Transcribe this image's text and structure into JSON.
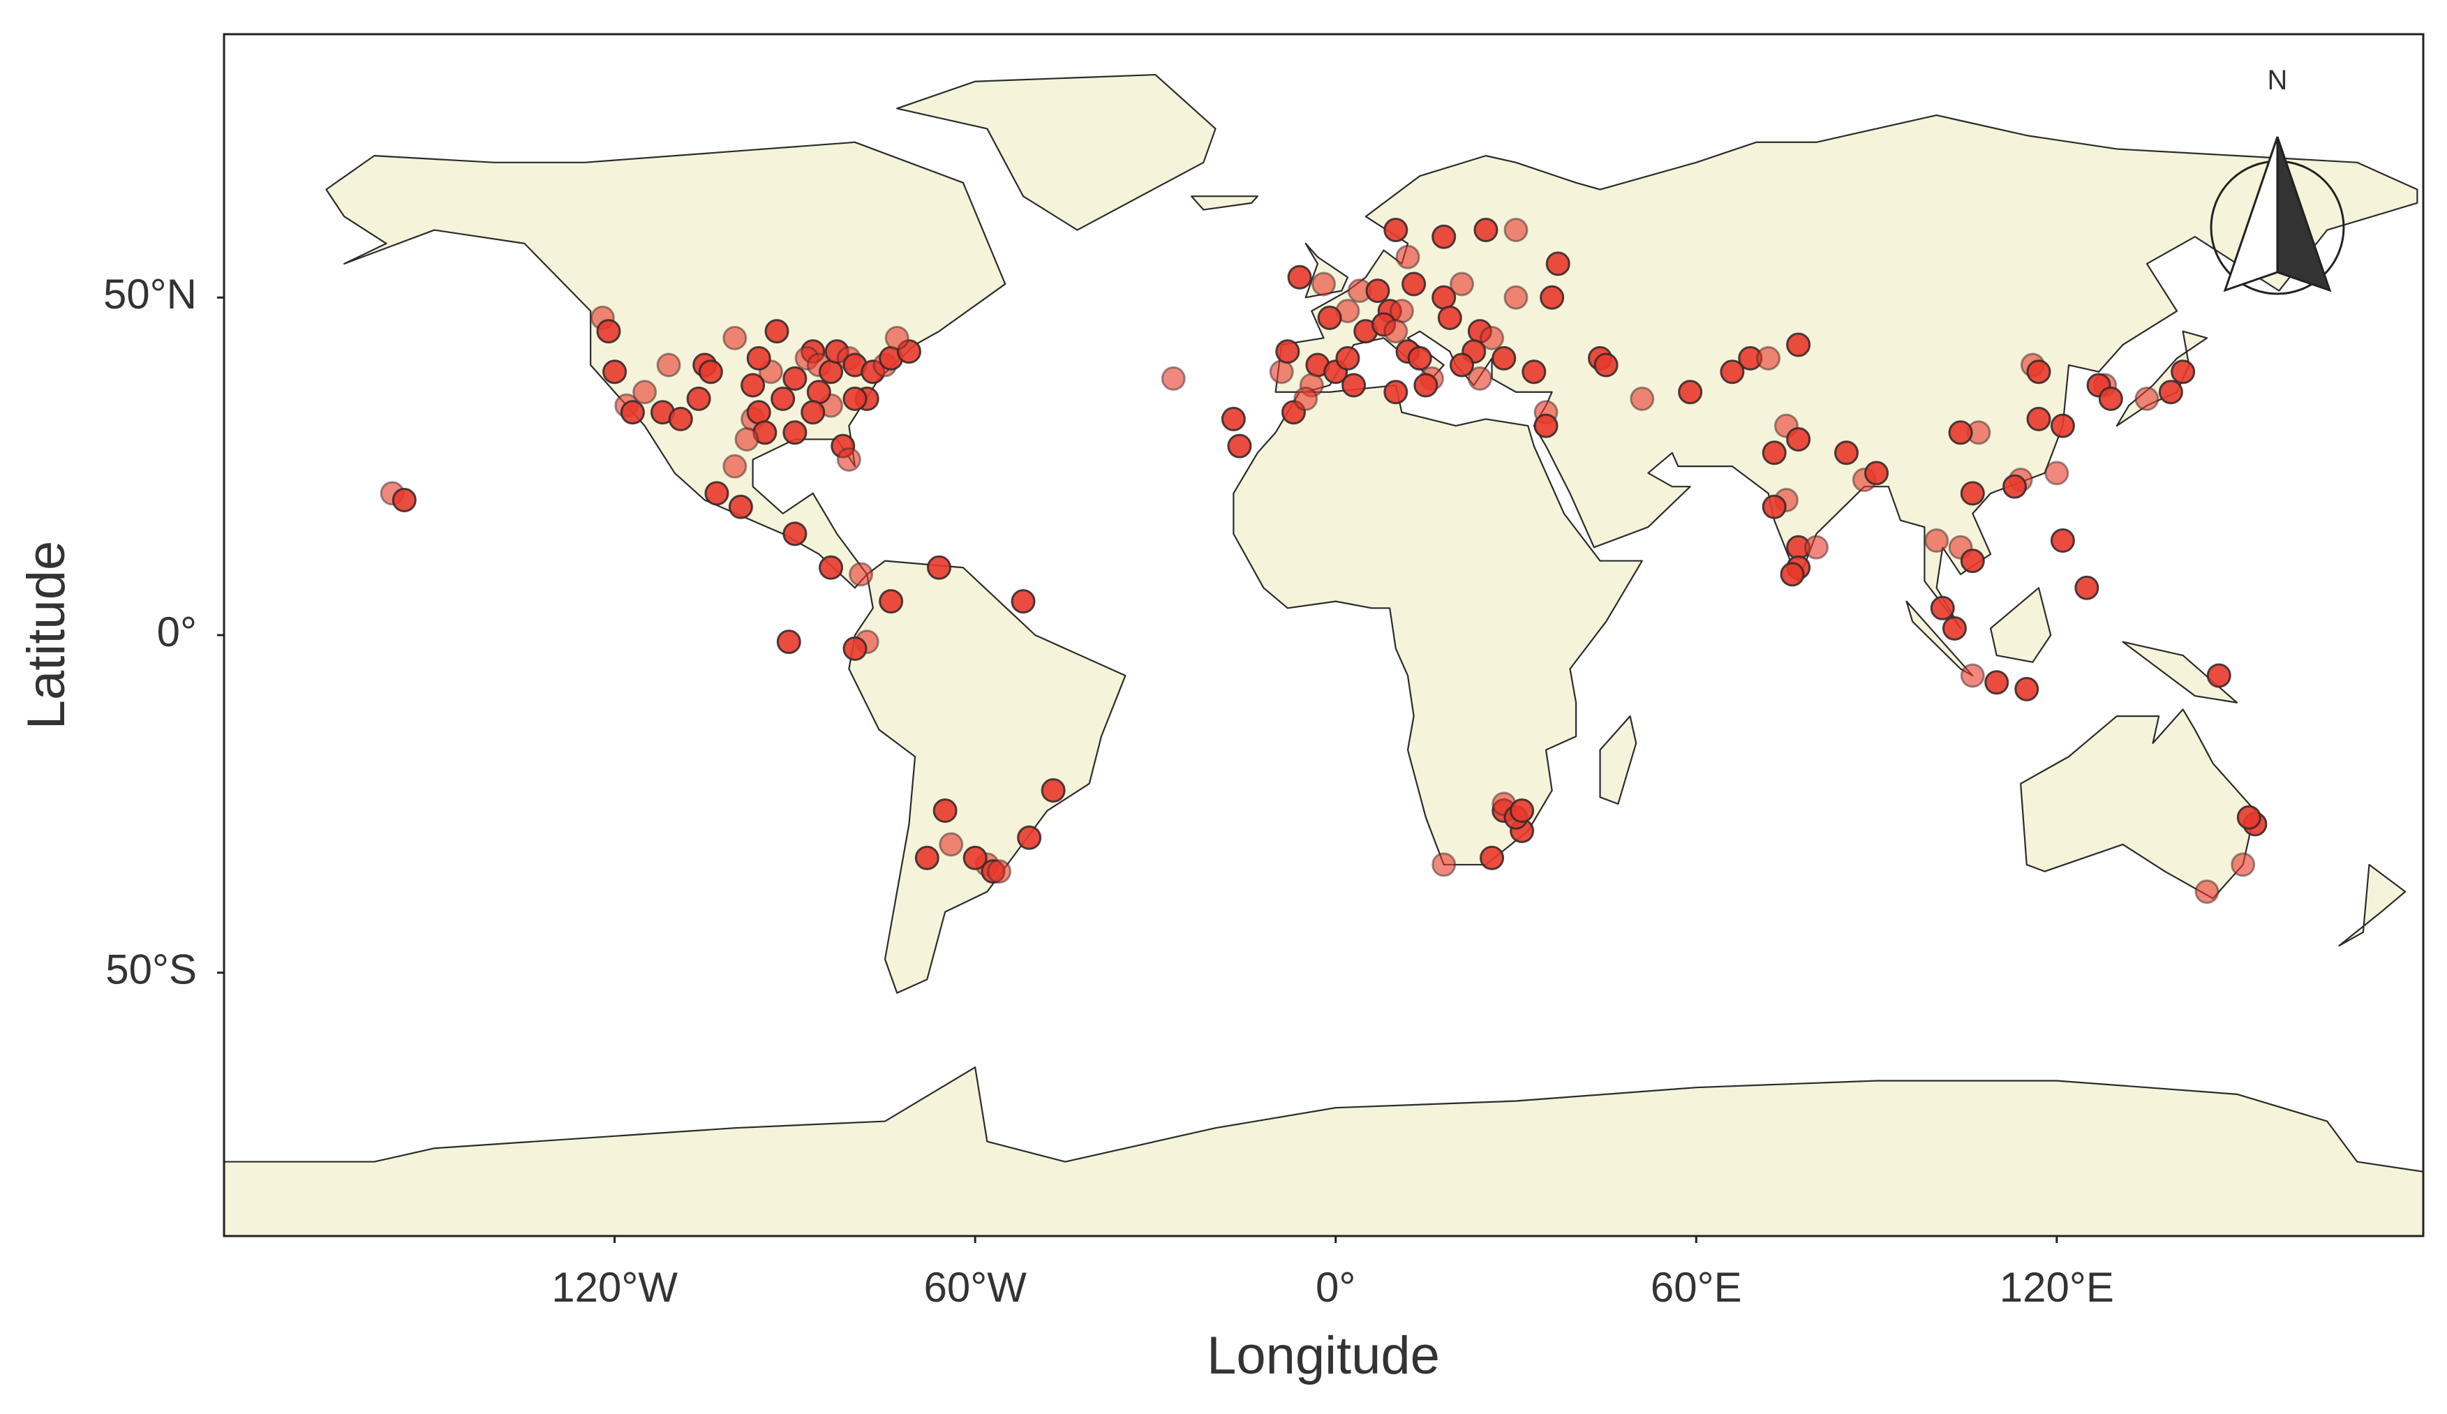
{
  "chart_data": {
    "type": "scatter",
    "xlabel": "Longitude",
    "ylabel": "Latitude",
    "north_label": "N",
    "color": "#e8392b",
    "xlim": [
      -185,
      181
    ],
    "ylim": [
      -89,
      89
    ],
    "xticks": [
      {
        "value": -120,
        "label": "120°W"
      },
      {
        "value": -60,
        "label": "60°W"
      },
      {
        "value": 0,
        "label": "0°"
      },
      {
        "value": 60,
        "label": "60°E"
      },
      {
        "value": 120,
        "label": "120°E"
      }
    ],
    "yticks": [
      {
        "value": 50,
        "label": "50°N"
      },
      {
        "value": 0,
        "label": "0°"
      },
      {
        "value": -50,
        "label": "50°S"
      }
    ],
    "x": [
      -122,
      -121,
      -120,
      -118,
      -117,
      -112,
      -111,
      -105,
      -104,
      -97,
      -96,
      -95,
      -98,
      -90,
      -87,
      -88,
      -93,
      -90,
      -86,
      -84,
      -83,
      -81,
      -80,
      -77,
      -75,
      -74,
      -71,
      -73,
      -78,
      -80,
      -84,
      -86,
      -82,
      -81,
      -87,
      -92,
      -94,
      -97,
      -96,
      -100,
      -106,
      -109,
      -115,
      -99,
      -103,
      -100,
      -90,
      -84,
      -79,
      -74,
      -66,
      -78,
      -80,
      -52,
      -157,
      -155,
      -91,
      -58,
      -60,
      -57,
      -64,
      -65,
      -68,
      -56,
      -47,
      -51,
      -27,
      -16,
      -17,
      -9,
      -8,
      -3,
      -4,
      0,
      2,
      2,
      -1,
      5,
      4,
      7,
      9,
      11,
      13,
      8,
      10,
      12,
      14,
      16,
      15,
      18,
      21,
      19,
      24,
      26,
      23,
      21,
      24,
      28,
      33,
      30,
      36,
      37,
      30,
      25,
      18,
      12,
      10,
      -6,
      -2,
      44,
      45,
      35,
      35,
      -7,
      -5,
      10,
      3,
      51,
      59,
      69,
      72,
      77,
      66,
      75,
      77,
      73,
      75,
      73,
      77,
      80,
      77,
      76,
      88,
      85,
      90,
      100,
      101,
      103,
      104,
      106,
      106,
      114,
      113,
      117,
      116,
      117,
      121,
      120,
      121,
      125,
      128,
      127,
      129,
      135,
      139,
      141,
      106,
      110,
      115,
      107,
      104,
      28,
      28,
      31,
      30,
      18,
      26,
      31,
      151,
      153,
      152,
      145,
      147
    ],
    "values": [
      47,
      45,
      39,
      34,
      33,
      33,
      40,
      40,
      39,
      32,
      33,
      30,
      29,
      30,
      42,
      41,
      45,
      38,
      40,
      39,
      42,
      41,
      40,
      39,
      40,
      41,
      42,
      44,
      35,
      35,
      34,
      36,
      28,
      26,
      33,
      35,
      39,
      37,
      41,
      44,
      35,
      32,
      36,
      19,
      21,
      25,
      15,
      10,
      9,
      5,
      10,
      -1,
      -2,
      5,
      21,
      20,
      -1,
      -34,
      -33,
      -35,
      -31,
      -26,
      -33,
      -35,
      -23,
      -30,
      38,
      28,
      32,
      39,
      42,
      40,
      37,
      39,
      41,
      48,
      47,
      45,
      51,
      51,
      48,
      48,
      52,
      46,
      45,
      42,
      41,
      38,
      37,
      50,
      52,
      47,
      45,
      44,
      42,
      40,
      38,
      41,
      39,
      50,
      50,
      55,
      60,
      60,
      59,
      56,
      60,
      53,
      52,
      41,
      40,
      33,
      31,
      33,
      35,
      36,
      37,
      35,
      36,
      41,
      41,
      43,
      39,
      31,
      29,
      27,
      20,
      19,
      13,
      13,
      10,
      9,
      23,
      27,
      24,
      14,
      4,
      1,
      13,
      11,
      21,
      23,
      22,
      32,
      40,
      39,
      31,
      24,
      14,
      7,
      37,
      37,
      35,
      35,
      36,
      39,
      -6,
      -7,
      -8,
      30,
      30,
      -26,
      -25,
      -29,
      -27,
      -34,
      -33,
      -26,
      -34,
      -28,
      -27,
      -38,
      -6
    ]
  }
}
